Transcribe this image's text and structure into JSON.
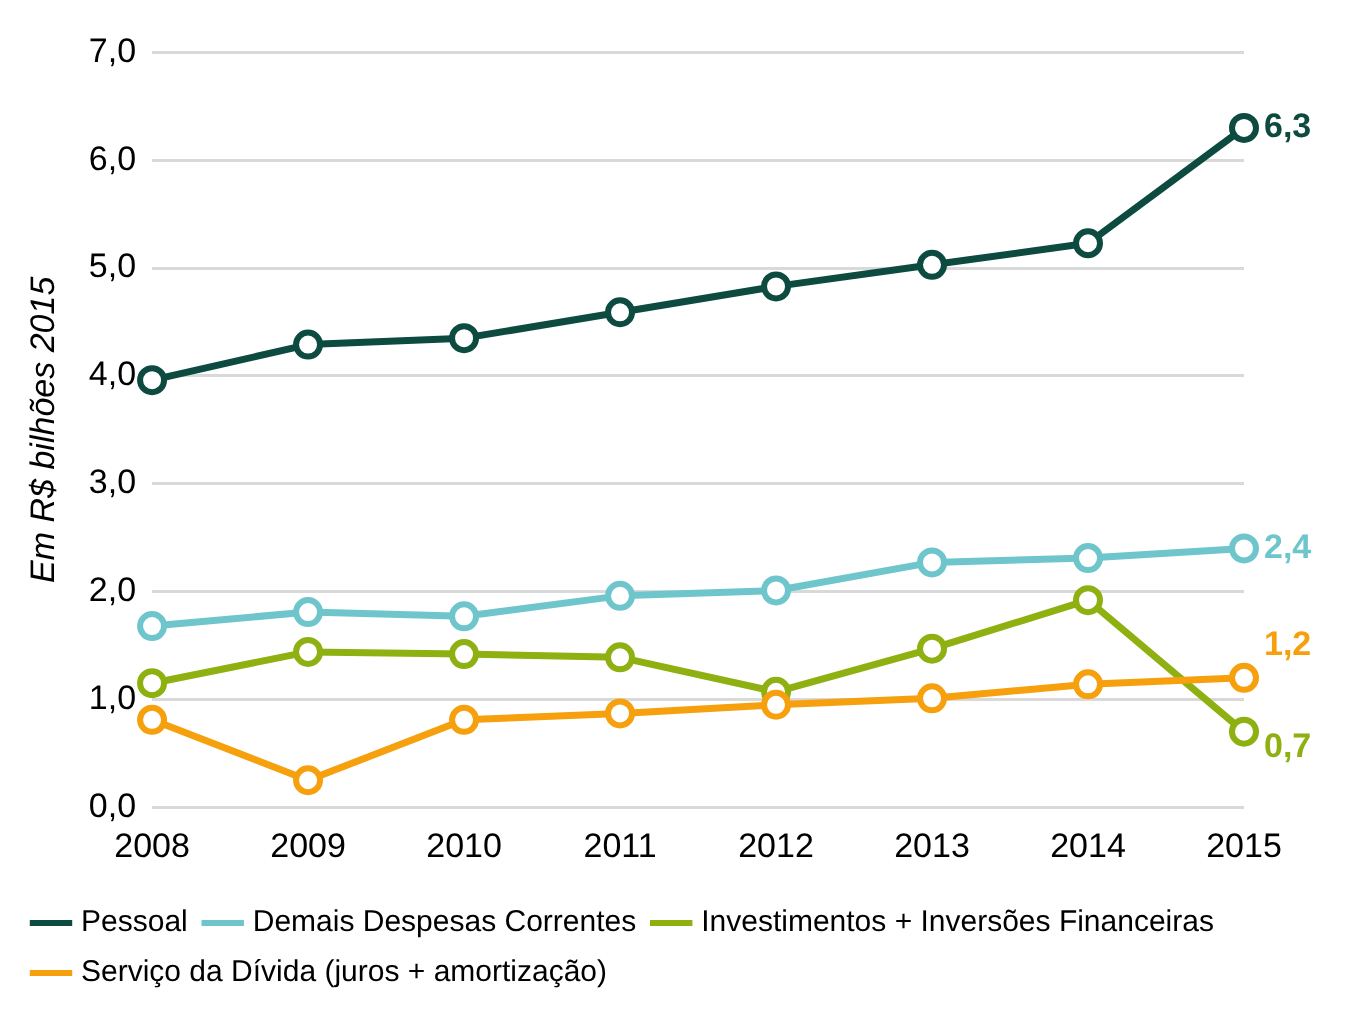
{
  "chart_data": {
    "type": "line",
    "ylabel": "Em R$ bilhões 2015",
    "categories": [
      "2008",
      "2009",
      "2010",
      "2011",
      "2012",
      "2013",
      "2014",
      "2015"
    ],
    "ylim": [
      0,
      7
    ],
    "yticks": [
      {
        "value": 0,
        "label": "0,0"
      },
      {
        "value": 1,
        "label": "1,0"
      },
      {
        "value": 2,
        "label": "2,0"
      },
      {
        "value": 3,
        "label": "3,0"
      },
      {
        "value": 4,
        "label": "4,0"
      },
      {
        "value": 5,
        "label": "5,0"
      },
      {
        "value": 6,
        "label": "6,0"
      },
      {
        "value": 7,
        "label": "7,0"
      }
    ],
    "grid": "y",
    "legend": "bottom left",
    "marker": "circle",
    "line_style": "solid",
    "series": [
      {
        "name": "Pessoal",
        "color": "#0d4a3f",
        "values": [
          3.96,
          4.29,
          4.35,
          4.59,
          4.83,
          5.03,
          5.23,
          6.3
        ],
        "value_labels": [
          null,
          null,
          null,
          null,
          null,
          null,
          null,
          "6,3"
        ]
      },
      {
        "name": "Demais Despesas Correntes",
        "color": "#6ec6cc",
        "values": [
          1.68,
          1.81,
          1.77,
          1.96,
          2.01,
          2.27,
          2.31,
          2.4
        ],
        "value_labels": [
          null,
          null,
          null,
          null,
          null,
          null,
          null,
          "2,4"
        ]
      },
      {
        "name": "Investimentos + Inversões Financeiras",
        "color": "#8fb011",
        "values": [
          1.15,
          1.44,
          1.42,
          1.39,
          1.07,
          1.47,
          1.92,
          0.7
        ],
        "value_labels": [
          null,
          null,
          null,
          null,
          null,
          null,
          null,
          "0,7"
        ]
      },
      {
        "name": "Serviço da Dívida (juros + amortização)",
        "color": "#f5a00c",
        "values": [
          0.81,
          0.25,
          0.81,
          0.87,
          0.95,
          1.01,
          1.14,
          1.2
        ],
        "value_labels": [
          null,
          null,
          null,
          null,
          null,
          null,
          null,
          "1,2"
        ]
      }
    ]
  }
}
